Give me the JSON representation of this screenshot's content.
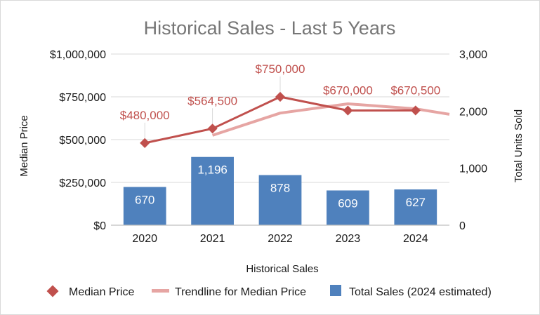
{
  "chart_data": {
    "type": "bar",
    "title": "Historical Sales - Last 5 Years",
    "xlabel": "Historical Sales",
    "ylabel": "Median Price",
    "y2label": "Total Units Sold",
    "categories": [
      "2020",
      "2021",
      "2022",
      "2023",
      "2024"
    ],
    "ylim": [
      0,
      1000000
    ],
    "y2lim": [
      0,
      3000
    ],
    "y_ticks": [
      "$0",
      "$250,000",
      "$500,000",
      "$750,000",
      "$1,000,000"
    ],
    "y_tick_values": [
      0,
      250000,
      500000,
      750000,
      1000000
    ],
    "y2_ticks": [
      "0",
      "1,000",
      "2,000",
      "3,000"
    ],
    "y2_tick_values": [
      0,
      1000,
      2000,
      3000
    ],
    "grid": true,
    "legend_position": "bottom",
    "series": [
      {
        "name": "Total Sales (2024 estimated)",
        "type": "bar",
        "axis": "secondary",
        "color": "#4f81bd",
        "values": [
          670,
          1196,
          878,
          609,
          627
        ],
        "labels": [
          "670",
          "1,196",
          "878",
          "609",
          "627"
        ]
      },
      {
        "name": "Median Price",
        "type": "line",
        "axis": "primary",
        "marker": "diamond",
        "color": "#c0504d",
        "values": [
          480000,
          564500,
          750000,
          670000,
          670500
        ],
        "labels": [
          "$480,000",
          "$564,500",
          "$750,000",
          "$670,000",
          "$670,500"
        ]
      },
      {
        "name": "Trendline for Median Price",
        "type": "trendline",
        "axis": "primary",
        "color": "#e6a5a3",
        "x": [
          2021,
          2022,
          2023,
          2024,
          2024.65
        ],
        "values": [
          525000,
          655000,
          709000,
          680000,
          648000
        ]
      }
    ]
  }
}
